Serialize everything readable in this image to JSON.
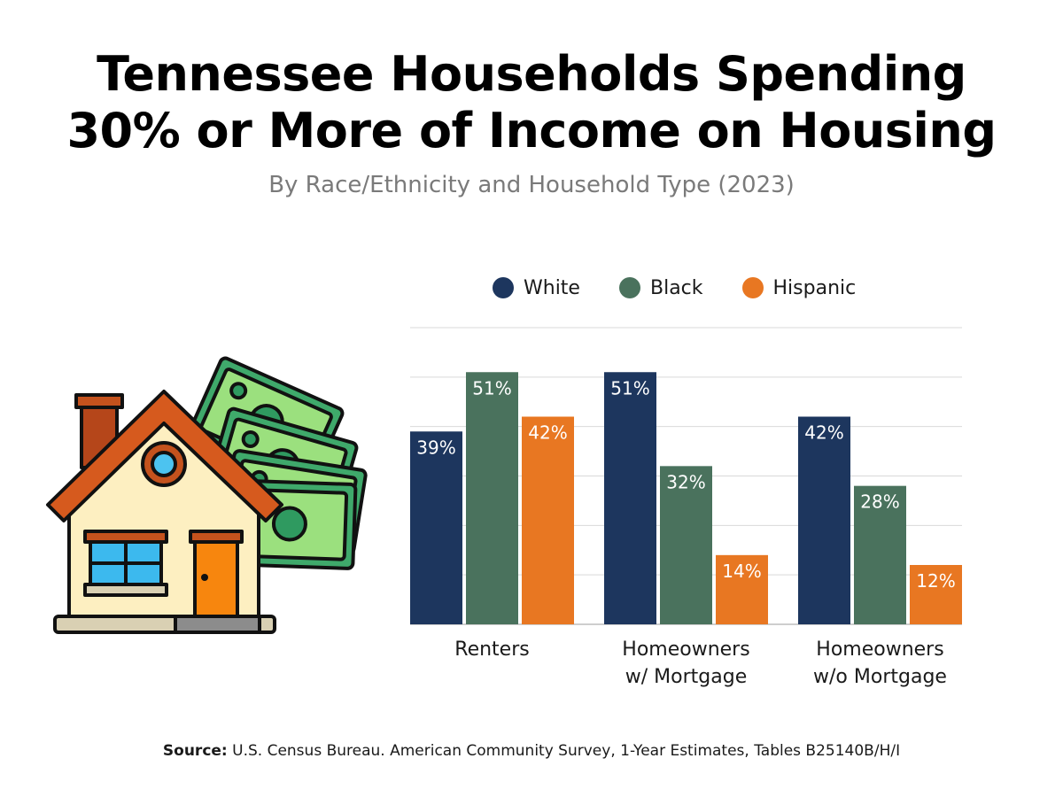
{
  "header": {
    "title_line1": "Tennessee Households Spending",
    "title_line2": "30% or More of Income on Housing",
    "subtitle": "By Race/Ethnicity and Household Type (2023)"
  },
  "illustration": {
    "icon": "house-with-money-icon"
  },
  "colors": {
    "white": "#1d365e",
    "black": "#4a725d",
    "hispanic": "#e87722",
    "gridline": "#d9d9d9",
    "axis": "#bdbdbd"
  },
  "chart_data": {
    "type": "bar",
    "categories": [
      [
        "Renters"
      ],
      [
        "Homeowners",
        "w/ Mortgage"
      ],
      [
        "Homeowners",
        "w/o Mortgage"
      ]
    ],
    "series": [
      {
        "name": "White",
        "color": "#1d365e",
        "values": [
          39,
          51,
          42
        ],
        "labels": [
          "39%",
          "51%",
          "42%"
        ]
      },
      {
        "name": "Black",
        "color": "#4a725d",
        "values": [
          51,
          32,
          28
        ],
        "labels": [
          "51%",
          "32%",
          "28%"
        ]
      },
      {
        "name": "Hispanic",
        "color": "#e87722",
        "values": [
          42,
          14,
          12
        ],
        "labels": [
          "42%",
          "14%",
          "12%"
        ]
      }
    ],
    "ylim": [
      0,
      60
    ],
    "grid": true,
    "legend_position": "top"
  },
  "footer": {
    "source_label": "Source:",
    "source_text": " U.S. Census Bureau. American Community Survey, 1-Year Estimates, Tables B25140B/H/I"
  }
}
